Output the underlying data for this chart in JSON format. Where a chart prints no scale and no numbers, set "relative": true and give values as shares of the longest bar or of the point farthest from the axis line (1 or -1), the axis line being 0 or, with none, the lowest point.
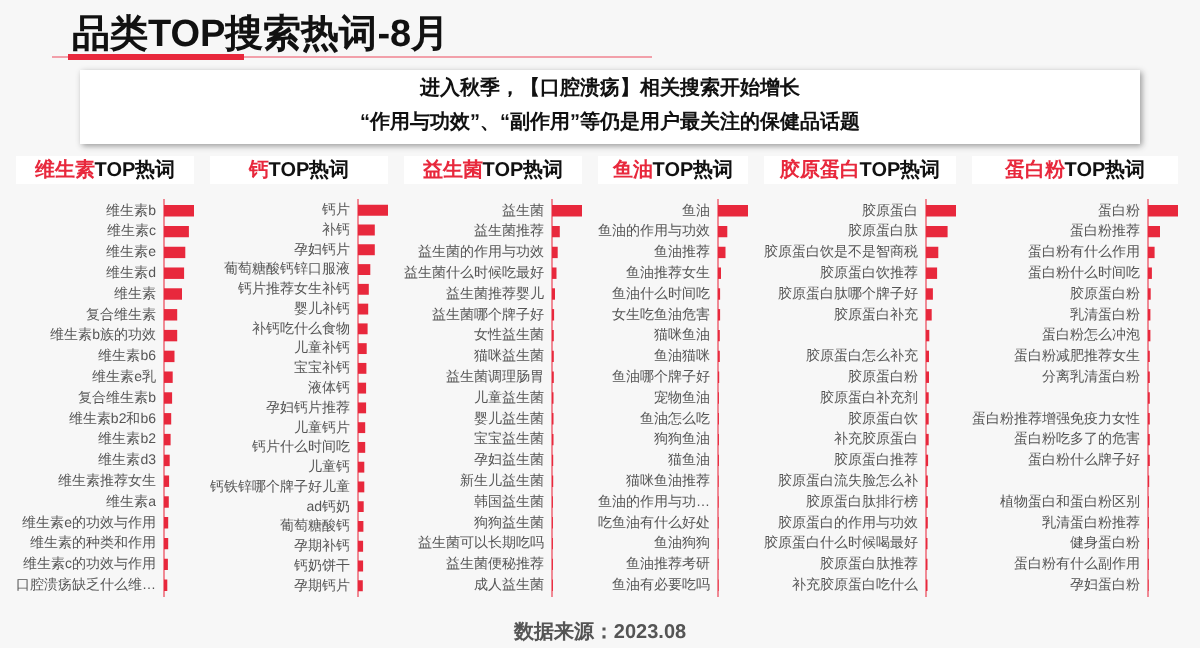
{
  "chart_data": [
    {
      "type": "other",
      "title": "品类TOP搜索热词-8月",
      "subtitle": "进入秋季，【口腔溃疡】相关搜索开始增长",
      "annotations": [
        "“作用与功效”、“副作用”等仍是用户最关注的保健品话题",
        "数据来源：2023.08"
      ]
    },
    {
      "type": "bar",
      "orientation": "horizontal",
      "relative": true,
      "title": "维生素TOP热词",
      "color": "#e8283c",
      "categories": [
        "维生素b",
        "维生素c",
        "维生素e",
        "维生素d",
        "维生素",
        "复合维生素",
        "维生素b族的功效",
        "维生素b6",
        "维生素e乳",
        "复合维生素b",
        "维生素b2和b6",
        "维生素b2",
        "维生素d3",
        "维生素推荐女生",
        "维生素a",
        "维生素e的功效与作用",
        "维生素的种类和作用",
        "维生素c的功效与作用",
        "口腔溃疡缺乏什么维…"
      ],
      "values": [
        1,
        0.83,
        0.71,
        0.67,
        0.6,
        0.44,
        0.44,
        0.35,
        0.29,
        0.27,
        0.24,
        0.22,
        0.19,
        0.17,
        0.16,
        0.14,
        0.14,
        0.13,
        0.11
      ]
    },
    {
      "type": "bar",
      "orientation": "horizontal",
      "relative": true,
      "title": "钙TOP热词",
      "color": "#e8283c",
      "categories": [
        "钙片",
        "补钙",
        "孕妇钙片",
        "葡萄糖酸钙锌口服液",
        "钙片推荐女生补钙",
        "婴儿补钙",
        "补钙吃什么食物",
        "儿童补钙",
        "宝宝补钙",
        "液体钙",
        "孕妇钙片推荐",
        "儿童钙片",
        "钙片什么时间吃",
        "儿童钙",
        "钙铁锌哪个牌子好儿童",
        "ad钙奶",
        "葡萄糖酸钙",
        "孕期补钙",
        "钙奶饼干",
        "孕期钙片"
      ],
      "values": [
        1,
        0.56,
        0.56,
        0.41,
        0.36,
        0.34,
        0.32,
        0.29,
        0.28,
        0.27,
        0.27,
        0.24,
        0.24,
        0.21,
        0.21,
        0.19,
        0.18,
        0.17,
        0.17,
        0.16
      ]
    },
    {
      "type": "bar",
      "orientation": "horizontal",
      "relative": true,
      "title": "益生菌TOP热词",
      "color": "#e8283c",
      "categories": [
        "益生菌",
        "益生菌推荐",
        "益生菌的作用与功效",
        "益生菌什么时候吃最好",
        "益生菌推荐婴儿",
        "益生菌哪个牌子好",
        "女性益生菌",
        "猫咪益生菌",
        "益生菌调理肠胃",
        "儿童益生菌",
        "婴儿益生菌",
        "宝宝益生菌",
        "孕妇益生菌",
        "新生儿益生菌",
        "韩国益生菌",
        "狗狗益生菌",
        "益生菌可以长期吃吗",
        "益生菌便秘推荐",
        "成人益生菌"
      ],
      "values": [
        1,
        0.26,
        0.19,
        0.15,
        0.1,
        0.07,
        0.06,
        0.06,
        0.06,
        0.05,
        0.05,
        0.05,
        0.04,
        0.04,
        0.03,
        0.03,
        0.03,
        0.03,
        0.03
      ]
    },
    {
      "type": "bar",
      "orientation": "horizontal",
      "relative": true,
      "title": "鱼油TOP热词",
      "color": "#e8283c",
      "categories": [
        "鱼油",
        "鱼油的作用与功效",
        "鱼油推荐",
        "鱼油推荐女生",
        "鱼油什么时间吃",
        "女生吃鱼油危害",
        "猫咪鱼油",
        "鱼油猫咪",
        "鱼油哪个牌子好",
        "宠物鱼油",
        "鱼油怎么吃",
        "狗狗鱼油",
        "猫鱼油",
        "猫咪鱼油推荐",
        "鱼油的作用与功…",
        "吃鱼油有什么好处",
        "鱼油狗狗",
        "鱼油推荐考研",
        "鱼油有必要吃吗"
      ],
      "values": [
        1,
        0.31,
        0.25,
        0.1,
        0.07,
        0.07,
        0.06,
        0.06,
        0.04,
        0.03,
        0.03,
        0.03,
        0.03,
        0.02,
        0.02,
        0.02,
        0.02,
        0.02,
        0.02
      ]
    },
    {
      "type": "bar",
      "orientation": "horizontal",
      "relative": true,
      "title": "胶原蛋白TOP热词",
      "color": "#e8283c",
      "categories": [
        "胶原蛋白",
        "胶原蛋白肽",
        "胶原蛋白饮是不是智商税",
        "胶原蛋白饮推荐",
        "胶原蛋白肽哪个牌子好",
        "胶原蛋白补充",
        null,
        "胶原蛋白怎么补充",
        "胶原蛋白粉",
        "胶原蛋白补充剂",
        "胶原蛋白饮",
        "补充胶原蛋白",
        "胶原蛋白推荐",
        "胶原蛋白流失脸怎么补",
        "胶原蛋白肽排行榜",
        "胶原蛋白的作用与功效",
        "胶原蛋白什么时候喝最好",
        "胶原蛋白肽推荐",
        "补充胶原蛋白吃什么"
      ],
      "values": [
        1,
        0.72,
        0.41,
        0.37,
        0.23,
        0.19,
        0.11,
        0.1,
        0.1,
        0.09,
        0.09,
        0.09,
        0.07,
        0.06,
        0.06,
        0.06,
        0.05,
        0.05,
        0.05
      ]
    },
    {
      "type": "bar",
      "orientation": "horizontal",
      "relative": true,
      "title": "蛋白粉TOP热词",
      "color": "#e8283c",
      "categories": [
        "蛋白粉",
        "蛋白粉推荐",
        "蛋白粉有什么作用",
        "蛋白粉什么时间吃",
        "胶原蛋白粉",
        "乳清蛋白粉",
        "蛋白粉怎么冲泡",
        "蛋白粉减肥推荐女生",
        "分离乳清蛋白粉",
        null,
        "蛋白粉推荐增强免疫力女性",
        "蛋白粉吃多了的危害",
        "蛋白粉什么牌子好",
        null,
        "植物蛋白和蛋白粉区别",
        "乳清蛋白粉推荐",
        "健身蛋白粉",
        "蛋白粉有什么副作用",
        "孕妇蛋白粉"
      ],
      "values": [
        1,
        0.4,
        0.22,
        0.13,
        0.09,
        0.08,
        0.08,
        0.06,
        0.06,
        0.06,
        0.06,
        0.06,
        0.06,
        0.04,
        0.03,
        0.03,
        0.03,
        0.03,
        0.02
      ]
    }
  ]
}
